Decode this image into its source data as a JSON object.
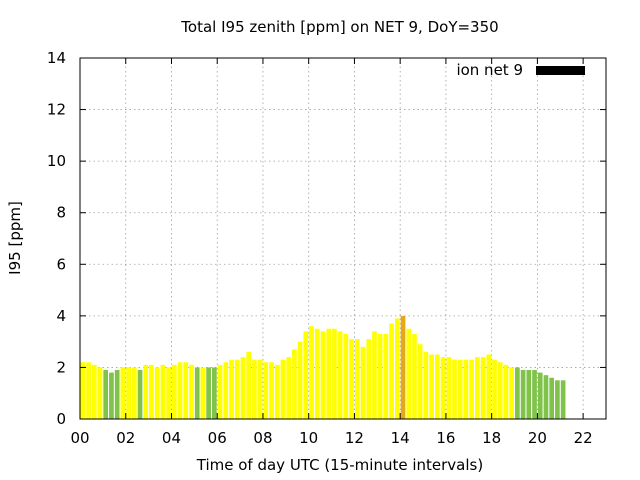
{
  "chart_data": {
    "type": "bar",
    "title": "Total I95 zenith [ppm] on NET 9, DoY=350",
    "xlabel": "Time of day UTC (15-minute intervals)",
    "ylabel": "I95 [ppm]",
    "ylim": [
      0,
      14
    ],
    "xlim": [
      0,
      23
    ],
    "bin_hours": 0.25,
    "x_ticks": [
      {
        "value": 0,
        "label": "00"
      },
      {
        "value": 2,
        "label": "02"
      },
      {
        "value": 4,
        "label": "04"
      },
      {
        "value": 6,
        "label": "06"
      },
      {
        "value": 8,
        "label": "08"
      },
      {
        "value": 10,
        "label": "10"
      },
      {
        "value": 12,
        "label": "12"
      },
      {
        "value": 14,
        "label": "14"
      },
      {
        "value": 16,
        "label": "16"
      },
      {
        "value": 18,
        "label": "18"
      },
      {
        "value": 20,
        "label": "20"
      },
      {
        "value": 22,
        "label": "22"
      }
    ],
    "y_ticks": [
      {
        "value": 0,
        "label": "0"
      },
      {
        "value": 2,
        "label": "2"
      },
      {
        "value": 4,
        "label": "4"
      },
      {
        "value": 6,
        "label": "6"
      },
      {
        "value": 8,
        "label": "8"
      },
      {
        "value": 10,
        "label": "10"
      },
      {
        "value": 12,
        "label": "12"
      },
      {
        "value": 14,
        "label": "14"
      }
    ],
    "grid": true,
    "legend": {
      "label": "ion net 9",
      "position": "top-right",
      "color": "#000000"
    },
    "colors": {
      "low": "#7fc34a",
      "normal": "#ffff00",
      "peak": "#e6a817"
    },
    "series": [
      {
        "name": "ion net 9",
        "values": [
          2.2,
          2.2,
          2.1,
          2.0,
          1.9,
          1.8,
          1.9,
          2.0,
          2.0,
          2.0,
          1.9,
          2.1,
          2.1,
          2.0,
          2.1,
          2.0,
          2.1,
          2.2,
          2.2,
          2.1,
          2.0,
          2.0,
          2.0,
          2.0,
          2.1,
          2.2,
          2.3,
          2.3,
          2.4,
          2.6,
          2.3,
          2.3,
          2.2,
          2.2,
          2.1,
          2.3,
          2.4,
          2.7,
          3.0,
          3.4,
          3.6,
          3.5,
          3.4,
          3.5,
          3.5,
          3.4,
          3.3,
          3.1,
          3.1,
          2.8,
          3.1,
          3.4,
          3.3,
          3.3,
          3.7,
          3.9,
          4.0,
          3.5,
          3.3,
          2.9,
          2.6,
          2.5,
          2.5,
          2.4,
          2.4,
          2.3,
          2.3,
          2.3,
          2.3,
          2.4,
          2.4,
          2.5,
          2.3,
          2.2,
          2.1,
          2.0,
          2.0,
          1.9,
          1.9,
          1.9,
          1.8,
          1.7,
          1.6,
          1.5,
          1.5
        ],
        "categories": [
          "normal",
          "normal",
          "normal",
          "normal",
          "low",
          "low",
          "low",
          "normal",
          "normal",
          "normal",
          "low",
          "normal",
          "normal",
          "normal",
          "normal",
          "normal",
          "normal",
          "normal",
          "normal",
          "normal",
          "low",
          "normal",
          "low",
          "low",
          "normal",
          "normal",
          "normal",
          "normal",
          "normal",
          "normal",
          "normal",
          "normal",
          "normal",
          "normal",
          "normal",
          "normal",
          "normal",
          "normal",
          "normal",
          "normal",
          "normal",
          "normal",
          "normal",
          "normal",
          "normal",
          "normal",
          "normal",
          "normal",
          "normal",
          "normal",
          "normal",
          "normal",
          "normal",
          "normal",
          "normal",
          "normal",
          "peak",
          "normal",
          "normal",
          "normal",
          "normal",
          "normal",
          "normal",
          "normal",
          "normal",
          "normal",
          "normal",
          "normal",
          "normal",
          "normal",
          "normal",
          "normal",
          "normal",
          "normal",
          "normal",
          "normal",
          "low",
          "low",
          "low",
          "low",
          "low",
          "low",
          "low",
          "low",
          "low"
        ]
      }
    ]
  }
}
